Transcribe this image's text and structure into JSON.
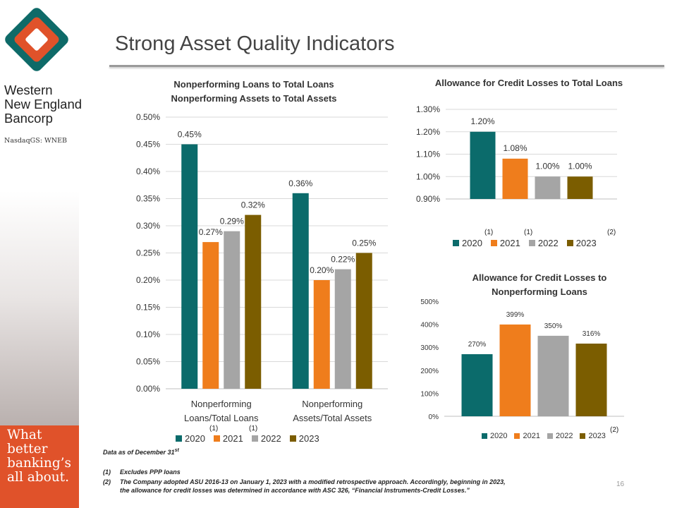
{
  "brand": {
    "company_name": "Western\nNew England\nBancorp",
    "ticker": "NasdaqGS: WNEB",
    "tagline": "What\nbetter\nbanking’s\nall about.",
    "colors": {
      "logo_teal": "#0e6a68",
      "logo_orange": "#e0522a",
      "logo_inner": "#ffffff",
      "tagline_bg": "#e0522a"
    }
  },
  "title": "Strong Asset Quality Indicators",
  "series_colors": {
    "2020": "#0b6b6b",
    "2021": "#ef7d1c",
    "2022": "#a5a5a5",
    "2023": "#7b5d00"
  },
  "chart_data": [
    {
      "id": "npl",
      "type": "bar",
      "title_lines": [
        "Nonperforming Loans to Total Loans",
        "Nonperforming Assets to Total Assets"
      ],
      "categories": [
        "Nonperforming\nLoans/Total Loans",
        "Nonperforming\nAssets/Total Assets"
      ],
      "series": [
        {
          "name": "2020",
          "values": [
            0.45,
            0.36
          ],
          "labels": [
            "0.45%",
            "0.36%"
          ]
        },
        {
          "name": "2021",
          "values": [
            0.27,
            0.2
          ],
          "labels": [
            "0.27%",
            "0.20%"
          ]
        },
        {
          "name": "2022",
          "values": [
            0.29,
            0.22
          ],
          "labels": [
            "0.29%",
            "0.22%"
          ]
        },
        {
          "name": "2023",
          "values": [
            0.32,
            0.25
          ],
          "labels": [
            "0.32%",
            "0.25%"
          ]
        }
      ],
      "ylim": [
        0,
        0.5
      ],
      "yticks": [
        "0.00%",
        "0.05%",
        "0.10%",
        "0.15%",
        "0.20%",
        "0.25%",
        "0.30%",
        "0.35%",
        "0.40%",
        "0.45%",
        "0.50%"
      ],
      "grid": true,
      "legend": {
        "position": "bottom",
        "footnotes": [
          "(1)",
          "(1)"
        ]
      }
    },
    {
      "id": "acl_loans",
      "type": "bar",
      "title_lines": [
        "Allowance for Credit Losses to Total Loans"
      ],
      "categories": [
        ""
      ],
      "series": [
        {
          "name": "2020",
          "values": [
            1.2
          ],
          "labels": [
            "1.20%"
          ]
        },
        {
          "name": "2021",
          "values": [
            1.08
          ],
          "labels": [
            "1.08%"
          ]
        },
        {
          "name": "2022",
          "values": [
            1.0
          ],
          "labels": [
            "1.00%"
          ]
        },
        {
          "name": "2023",
          "values": [
            1.0
          ],
          "labels": [
            "1.00%"
          ]
        }
      ],
      "ylim": [
        0.9,
        1.3
      ],
      "yticks": [
        "0.90%",
        "1.00%",
        "1.10%",
        "1.20%",
        "1.30%"
      ],
      "grid": true,
      "legend": {
        "position": "bottom",
        "footnotes": [
          "(1)",
          "(1)",
          "(2)"
        ]
      }
    },
    {
      "id": "acl_npl",
      "type": "bar",
      "title_lines": [
        "Allowance for Credit Losses to",
        "Nonperforming Loans"
      ],
      "categories": [
        ""
      ],
      "series": [
        {
          "name": "2020",
          "values": [
            270
          ],
          "labels": [
            "270%"
          ]
        },
        {
          "name": "2021",
          "values": [
            399
          ],
          "labels": [
            "399%"
          ]
        },
        {
          "name": "2022",
          "values": [
            350
          ],
          "labels": [
            "350%"
          ]
        },
        {
          "name": "2023",
          "values": [
            316
          ],
          "labels": [
            "316%"
          ]
        }
      ],
      "ylim": [
        0,
        500
      ],
      "yticks": [
        "0%",
        "100%",
        "200%",
        "300%",
        "400%",
        "500%"
      ],
      "grid": false,
      "legend": {
        "position": "bottom",
        "footnotes": [
          "(2)"
        ]
      }
    }
  ],
  "notes": {
    "data_as_of": "Data as of December 31",
    "data_as_of_sup": "st",
    "footnotes": [
      {
        "num": "(1)",
        "lines": [
          "Excludes PPP loans"
        ]
      },
      {
        "num": "(2)",
        "lines": [
          "The Company adopted ASU 2016-13 on January 1, 2023 with a modified retrospective approach.  Accordingly, beginning in 2023,",
          "the allowance for credit losses was determined in accordance with ASC 326, “Financial Instruments-Credit Losses.”"
        ]
      }
    ]
  },
  "page_number": "16"
}
